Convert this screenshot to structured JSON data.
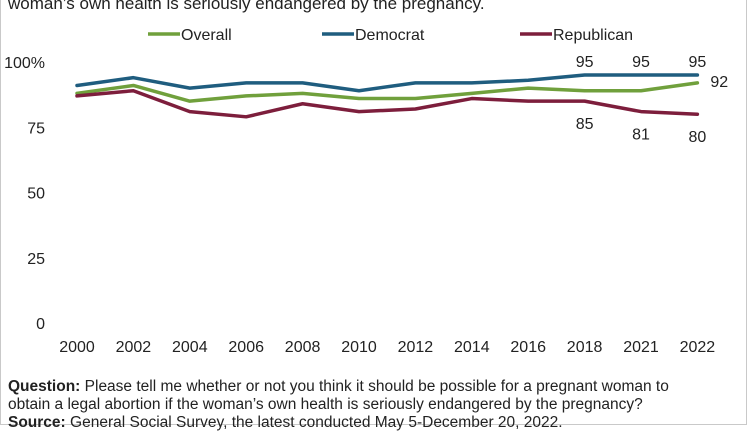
{
  "header": {
    "question_tail": "woman’s own health is seriously endangered by the pregnancy."
  },
  "chart_data": {
    "type": "line",
    "x": [
      "2000",
      "2002",
      "2004",
      "2006",
      "2008",
      "2010",
      "2012",
      "2014",
      "2016",
      "2018",
      "2021",
      "2022"
    ],
    "ylim": [
      0,
      100
    ],
    "yticks": [
      0,
      25,
      50,
      75,
      100
    ],
    "ytick_labels": [
      "0",
      "25",
      "50",
      "75",
      "100%"
    ],
    "legend_position": "top",
    "grid": false,
    "series": [
      {
        "name": "Overall",
        "color": "#70a03c",
        "values": [
          88,
          91,
          85,
          87,
          88,
          86,
          86,
          88,
          90,
          89,
          89,
          92
        ]
      },
      {
        "name": "Democrat",
        "color": "#1f5d7f",
        "values": [
          91,
          94,
          90,
          92,
          92,
          89,
          92,
          92,
          93,
          95,
          95,
          95
        ]
      },
      {
        "name": "Republican",
        "color": "#7d1e3c",
        "values": [
          87,
          89,
          81,
          79,
          84,
          81,
          82,
          86,
          85,
          85,
          81,
          80
        ]
      }
    ],
    "data_labels": [
      {
        "series": "Democrat",
        "x": "2018",
        "text": "95"
      },
      {
        "series": "Democrat",
        "x": "2021",
        "text": "95"
      },
      {
        "series": "Democrat",
        "x": "2022",
        "text": "95"
      },
      {
        "series": "Overall",
        "x": "2022",
        "text": "92"
      },
      {
        "series": "Republican",
        "x": "2018",
        "text": "85"
      },
      {
        "series": "Republican",
        "x": "2021",
        "text": "81"
      },
      {
        "series": "Republican",
        "x": "2022",
        "text": "80"
      }
    ]
  },
  "footer": {
    "question_label": "Question:",
    "question_text": "Please tell me whether or not you think it should be possible for a pregnant woman to",
    "question_text_2": "obtain a legal abortion if the woman’s own health is seriously endangered by the pregnancy?",
    "source_label": "Source:",
    "source_text": "General Social Survey, the latest conducted May 5-December 20, 2022."
  }
}
